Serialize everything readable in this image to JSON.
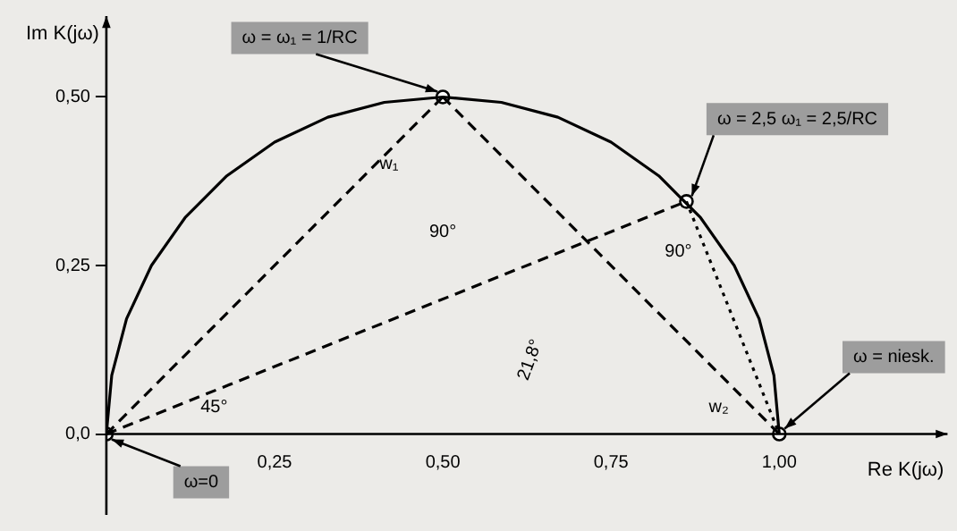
{
  "chart_data": {
    "type": "line",
    "xlabel": "Re K(jω)",
    "ylabel": "Im K(jω)",
    "xlim": [
      0,
      1.25
    ],
    "ylim": [
      -0.12,
      0.62
    ],
    "xticks": [
      {
        "value": 0.25,
        "label": "0,25"
      },
      {
        "value": 0.5,
        "label": "0,50"
      },
      {
        "value": 0.75,
        "label": "0,75"
      },
      {
        "value": 1,
        "label": "1,00"
      }
    ],
    "yticks": [
      {
        "value": 0,
        "label": "0,0"
      },
      {
        "value": 0.25,
        "label": "0,25"
      },
      {
        "value": 0.5,
        "label": "0,50"
      }
    ],
    "grid": false,
    "legend": false,
    "series": [
      {
        "type": "line",
        "color": "#000000",
        "line_style": "solid",
        "x": [
          0,
          0.008,
          0.03,
          0.067,
          0.117,
          0.179,
          0.25,
          0.329,
          0.413,
          0.5,
          0.587,
          0.671,
          0.75,
          0.821,
          0.883,
          0.933,
          0.97,
          0.992,
          1
        ],
        "values": [
          0,
          0.087,
          0.171,
          0.25,
          0.321,
          0.383,
          0.433,
          0.47,
          0.492,
          0.5,
          0.492,
          0.47,
          0.433,
          0.383,
          0.321,
          0.25,
          0.171,
          0.087,
          0
        ]
      },
      {
        "type": "line",
        "color": "#000000",
        "line_style": "dashed",
        "x": [
          0,
          0.5
        ],
        "values": [
          0,
          0.5
        ]
      },
      {
        "type": "line",
        "color": "#000000",
        "line_style": "dashed",
        "x": [
          0,
          0.862
        ],
        "values": [
          0,
          0.345
        ]
      },
      {
        "type": "line",
        "color": "#000000",
        "line_style": "dashed",
        "x": [
          0.5,
          1
        ],
        "values": [
          0.5,
          0
        ]
      },
      {
        "type": "line",
        "color": "#000000",
        "line_style": "dotted",
        "x": [
          0.862,
          1
        ],
        "values": [
          0.345,
          0
        ]
      },
      {
        "type": "scatter",
        "color": "#000000",
        "marker": "circle",
        "x": [
          0,
          0.5,
          0.862,
          1
        ],
        "values": [
          0,
          0.5,
          0.345,
          0
        ]
      }
    ],
    "annotations": [
      {
        "text": "ω = ω₁ = 1/RC",
        "x": 0.5,
        "y": 0.5
      },
      {
        "text": "ω = 2,5 ω₁ = 2,5/RC",
        "x": 0.862,
        "y": 0.345
      },
      {
        "text": "ω = niesk.",
        "x": 1,
        "y": 0
      },
      {
        "text": "ω=0",
        "x": 0,
        "y": 0
      },
      "w₁",
      "w₂",
      "90°",
      "90°",
      "45°",
      "21,8°"
    ]
  }
}
